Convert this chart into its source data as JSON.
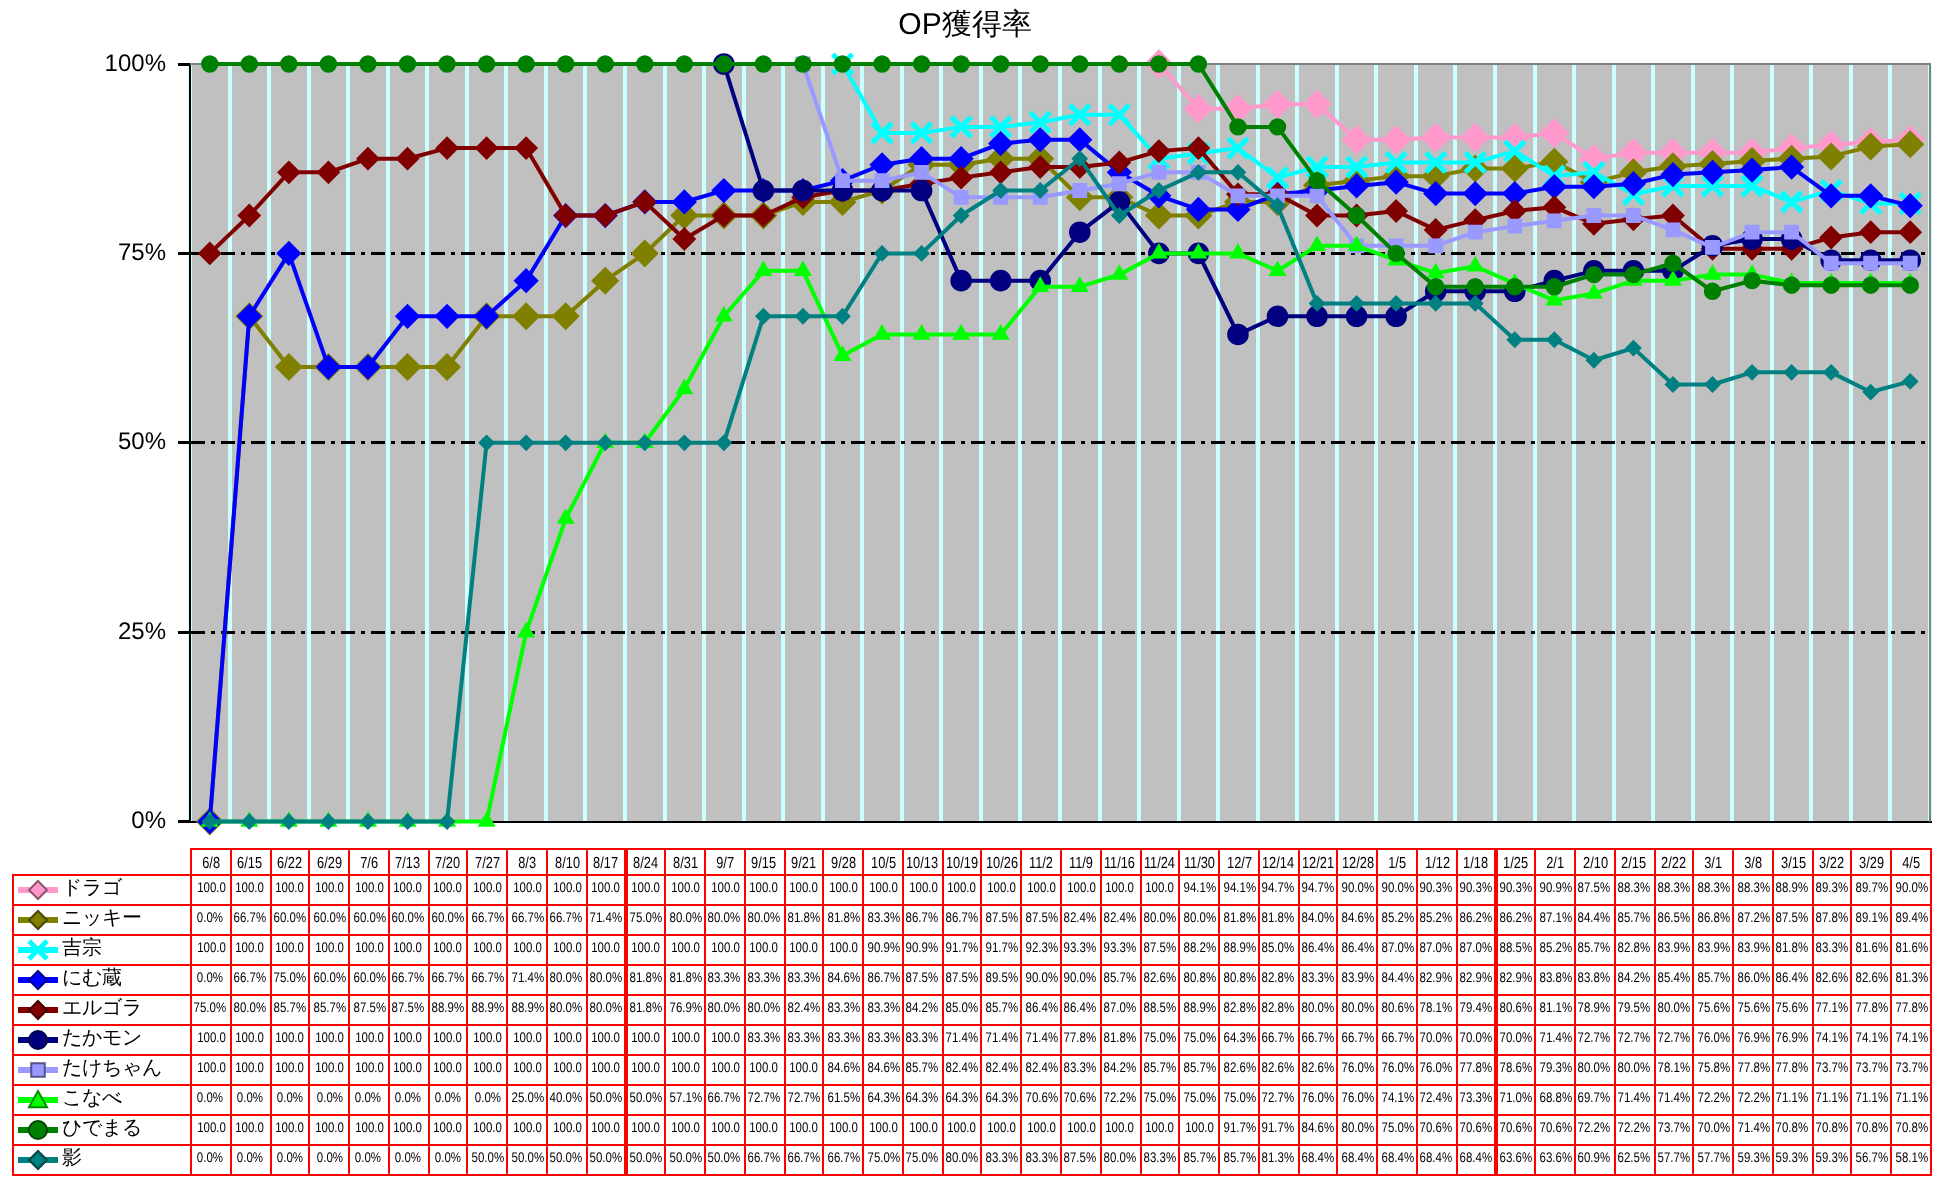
{
  "chart_data": {
    "type": "line",
    "title": "OP獲得率",
    "categories": [
      "6/8",
      "6/15",
      "6/22",
      "6/29",
      "7/6",
      "7/13",
      "7/20",
      "7/27",
      "8/3",
      "8/10",
      "8/17",
      "8/24",
      "8/31",
      "9/7",
      "9/15",
      "9/21",
      "9/28",
      "10/5",
      "10/13",
      "10/19",
      "10/26",
      "11/2",
      "11/9",
      "11/16",
      "11/24",
      "11/30",
      "12/7",
      "12/14",
      "12/21",
      "12/28",
      "1/5",
      "1/12",
      "1/18",
      "1/25",
      "2/1",
      "2/10",
      "2/15",
      "2/22",
      "3/1",
      "3/8",
      "3/15",
      "3/22",
      "3/29",
      "4/5"
    ],
    "ylim": [
      0,
      100
    ],
    "yticks": [
      {
        "value": 0,
        "label": "0%"
      },
      {
        "value": 25,
        "label": "25%"
      },
      {
        "value": 50,
        "label": "50%"
      },
      {
        "value": 75,
        "label": "75%"
      },
      {
        "value": 100,
        "label": "100%"
      }
    ],
    "grid": true,
    "legend": "bottom",
    "series": [
      {
        "name": "ドラゴ",
        "color": "#ff99cc",
        "marker": "diamond",
        "values": [
          null,
          null,
          null,
          null,
          null,
          null,
          null,
          null,
          null,
          null,
          null,
          null,
          null,
          null,
          null,
          null,
          null,
          null,
          null,
          null,
          null,
          null,
          null,
          null,
          100,
          94.1,
          94.1,
          94.7,
          94.7,
          90.0,
          90.0,
          90.3,
          90.3,
          90.3,
          90.9,
          87.5,
          88.3,
          88.3,
          88.3,
          88.3,
          88.9,
          89.3,
          89.7,
          90.0
        ],
        "value_labels": [
          "100.0",
          "100.0",
          "100.0",
          "100.0",
          "100.0",
          "100.0",
          "100.0",
          "100.0",
          "100.0",
          "100.0",
          "100.0",
          "100.0",
          "100.0",
          "100.0",
          "100.0",
          "100.0",
          "100.0",
          "100.0",
          "100.0",
          "100.0",
          "100.0",
          "100.0",
          "100.0",
          "100.0",
          "100.0",
          "94.1%",
          "94.1%",
          "94.7%",
          "94.7%",
          "90.0%",
          "90.0%",
          "90.3%",
          "90.3%",
          "90.3%",
          "90.9%",
          "87.5%",
          "88.3%",
          "88.3%",
          "88.3%",
          "88.3%",
          "88.9%",
          "89.3%",
          "89.7%",
          "90.0%"
        ]
      },
      {
        "name": "ニッキー",
        "color": "#808000",
        "marker": "diamond",
        "values": [
          0,
          66.7,
          60,
          60,
          60,
          60,
          60,
          66.7,
          66.7,
          66.7,
          71.4,
          75,
          80,
          80,
          80,
          81.8,
          81.8,
          83.3,
          86.7,
          86.7,
          87.5,
          87.5,
          82.4,
          82.4,
          80,
          80,
          81.8,
          81.8,
          84,
          84.6,
          85.2,
          85.2,
          86.2,
          86.2,
          87.1,
          84.4,
          85.7,
          86.5,
          86.8,
          87.2,
          87.5,
          87.8,
          89.1,
          89.4
        ],
        "value_labels": [
          "0.0%",
          "66.7%",
          "60.0%",
          "60.0%",
          "60.0%",
          "60.0%",
          "60.0%",
          "66.7%",
          "66.7%",
          "66.7%",
          "71.4%",
          "75.0%",
          "80.0%",
          "80.0%",
          "80.0%",
          "81.8%",
          "81.8%",
          "83.3%",
          "86.7%",
          "86.7%",
          "87.5%",
          "87.5%",
          "82.4%",
          "82.4%",
          "80.0%",
          "80.0%",
          "81.8%",
          "81.8%",
          "84.0%",
          "84.6%",
          "85.2%",
          "85.2%",
          "86.2%",
          "86.2%",
          "87.1%",
          "84.4%",
          "85.7%",
          "86.5%",
          "86.8%",
          "87.2%",
          "87.5%",
          "87.8%",
          "89.1%",
          "89.4%"
        ]
      },
      {
        "name": "吉宗",
        "color": "#00ffff",
        "marker": "cross",
        "values": [
          null,
          null,
          null,
          null,
          null,
          null,
          null,
          null,
          null,
          null,
          null,
          null,
          null,
          null,
          null,
          null,
          100,
          90.9,
          90.9,
          91.7,
          91.7,
          92.3,
          93.3,
          93.3,
          87.5,
          88.2,
          88.9,
          85.0,
          86.4,
          86.4,
          87.0,
          87.0,
          87.0,
          88.5,
          85.2,
          85.7,
          82.8,
          83.9,
          83.9,
          83.9,
          81.8,
          83.3,
          81.6,
          81.6
        ],
        "value_labels": [
          "100.0",
          "100.0",
          "100.0",
          "100.0",
          "100.0",
          "100.0",
          "100.0",
          "100.0",
          "100.0",
          "100.0",
          "100.0",
          "100.0",
          "100.0",
          "100.0",
          "100.0",
          "100.0",
          "100.0",
          "90.9%",
          "90.9%",
          "91.7%",
          "91.7%",
          "92.3%",
          "93.3%",
          "93.3%",
          "87.5%",
          "88.2%",
          "88.9%",
          "85.0%",
          "86.4%",
          "86.4%",
          "87.0%",
          "87.0%",
          "87.0%",
          "88.5%",
          "85.2%",
          "85.7%",
          "82.8%",
          "83.9%",
          "83.9%",
          "83.9%",
          "81.8%",
          "83.3%",
          "81.6%",
          "81.6%"
        ]
      },
      {
        "name": "にむ蔵",
        "color": "#0000ff",
        "marker": "diamond",
        "values": [
          0,
          66.7,
          75,
          60,
          60,
          66.7,
          66.7,
          66.7,
          71.4,
          80,
          80,
          81.8,
          81.8,
          83.3,
          83.3,
          83.3,
          84.6,
          86.7,
          87.5,
          87.5,
          89.5,
          90,
          90,
          85.7,
          82.6,
          80.8,
          80.8,
          82.8,
          83.3,
          83.9,
          84.4,
          82.9,
          82.9,
          82.9,
          83.8,
          83.8,
          84.2,
          85.4,
          85.7,
          86.0,
          86.4,
          82.6,
          82.6,
          81.3
        ],
        "value_labels": [
          "0.0%",
          "66.7%",
          "75.0%",
          "60.0%",
          "60.0%",
          "66.7%",
          "66.7%",
          "66.7%",
          "71.4%",
          "80.0%",
          "80.0%",
          "81.8%",
          "81.8%",
          "83.3%",
          "83.3%",
          "83.3%",
          "84.6%",
          "86.7%",
          "87.5%",
          "87.5%",
          "89.5%",
          "90.0%",
          "90.0%",
          "85.7%",
          "82.6%",
          "80.8%",
          "80.8%",
          "82.8%",
          "83.3%",
          "83.9%",
          "84.4%",
          "82.9%",
          "82.9%",
          "82.9%",
          "83.8%",
          "83.8%",
          "84.2%",
          "85.4%",
          "85.7%",
          "86.0%",
          "86.4%",
          "82.6%",
          "82.6%",
          "81.3%"
        ]
      },
      {
        "name": "エルゴラ",
        "color": "#800000",
        "marker": "diamond",
        "values": [
          75,
          80,
          85.7,
          85.7,
          87.5,
          87.5,
          88.9,
          88.9,
          88.9,
          80,
          80,
          81.8,
          76.9,
          80,
          80,
          82.4,
          83.3,
          83.3,
          84.2,
          85,
          85.7,
          86.4,
          86.4,
          87,
          88.5,
          88.9,
          82.8,
          82.8,
          80,
          80,
          80.6,
          78.1,
          79.4,
          80.6,
          81.1,
          78.9,
          79.5,
          80,
          75.6,
          75.6,
          75.6,
          77.1,
          77.8,
          77.8
        ],
        "value_labels": [
          "75.0%",
          "80.0%",
          "85.7%",
          "85.7%",
          "87.5%",
          "87.5%",
          "88.9%",
          "88.9%",
          "88.9%",
          "80.0%",
          "80.0%",
          "81.8%",
          "76.9%",
          "80.0%",
          "80.0%",
          "82.4%",
          "83.3%",
          "83.3%",
          "84.2%",
          "85.0%",
          "85.7%",
          "86.4%",
          "86.4%",
          "87.0%",
          "88.5%",
          "88.9%",
          "82.8%",
          "82.8%",
          "80.0%",
          "80.0%",
          "80.6%",
          "78.1%",
          "79.4%",
          "80.6%",
          "81.1%",
          "78.9%",
          "79.5%",
          "80.0%",
          "75.6%",
          "75.6%",
          "75.6%",
          "77.1%",
          "77.8%",
          "77.8%"
        ]
      },
      {
        "name": "たかモン",
        "color": "#000080",
        "marker": "circle",
        "values": [
          null,
          null,
          null,
          null,
          null,
          null,
          null,
          null,
          null,
          null,
          null,
          null,
          null,
          100,
          83.3,
          83.3,
          83.3,
          83.3,
          83.3,
          71.4,
          71.4,
          71.4,
          77.8,
          81.8,
          75,
          75,
          64.3,
          66.7,
          66.7,
          66.7,
          66.7,
          70,
          70,
          70,
          71.4,
          72.7,
          72.7,
          72.7,
          76,
          76.9,
          76.9,
          74.1,
          74.1,
          74.1
        ],
        "value_labels": [
          "100.0",
          "100.0",
          "100.0",
          "100.0",
          "100.0",
          "100.0",
          "100.0",
          "100.0",
          "100.0",
          "100.0",
          "100.0",
          "100.0",
          "100.0",
          "100.0",
          "83.3%",
          "83.3%",
          "83.3%",
          "83.3%",
          "83.3%",
          "71.4%",
          "71.4%",
          "71.4%",
          "77.8%",
          "81.8%",
          "75.0%",
          "75.0%",
          "64.3%",
          "66.7%",
          "66.7%",
          "66.7%",
          "66.7%",
          "70.0%",
          "70.0%",
          "70.0%",
          "71.4%",
          "72.7%",
          "72.7%",
          "72.7%",
          "76.0%",
          "76.9%",
          "76.9%",
          "74.1%",
          "74.1%",
          "74.1%"
        ]
      },
      {
        "name": "たけちゃん",
        "color": "#9999ff",
        "marker": "square",
        "values": [
          null,
          null,
          null,
          null,
          null,
          null,
          null,
          null,
          null,
          null,
          null,
          null,
          null,
          null,
          null,
          100,
          84.6,
          84.6,
          85.7,
          82.4,
          82.4,
          82.4,
          83.3,
          84.2,
          85.7,
          85.7,
          82.6,
          82.6,
          82.6,
          76,
          76,
          76,
          77.8,
          78.6,
          79.3,
          80,
          80,
          78.1,
          75.8,
          77.8,
          77.8,
          73.7,
          73.7,
          73.7
        ],
        "value_labels": [
          "100.0",
          "100.0",
          "100.0",
          "100.0",
          "100.0",
          "100.0",
          "100.0",
          "100.0",
          "100.0",
          "100.0",
          "100.0",
          "100.0",
          "100.0",
          "100.0",
          "100.0",
          "100.0",
          "84.6%",
          "84.6%",
          "85.7%",
          "82.4%",
          "82.4%",
          "82.4%",
          "83.3%",
          "84.2%",
          "85.7%",
          "85.7%",
          "82.6%",
          "82.6%",
          "82.6%",
          "76.0%",
          "76.0%",
          "76.0%",
          "77.8%",
          "78.6%",
          "79.3%",
          "80.0%",
          "80.0%",
          "78.1%",
          "75.8%",
          "77.8%",
          "77.8%",
          "73.7%",
          "73.7%",
          "73.7%"
        ]
      },
      {
        "name": "こなべ",
        "color": "#00ff00",
        "marker": "triangle",
        "values": [
          0,
          0,
          0,
          0,
          0,
          0,
          0,
          0,
          25,
          40,
          50,
          50,
          57.1,
          66.7,
          72.7,
          72.7,
          61.5,
          64.3,
          64.3,
          64.3,
          64.3,
          70.6,
          70.6,
          72.2,
          75,
          75,
          75,
          72.7,
          76,
          76,
          74.1,
          72.4,
          73.3,
          71,
          68.8,
          69.7,
          71.4,
          71.4,
          72.2,
          72.2,
          71.1,
          71.1,
          71.1,
          71.1
        ],
        "value_labels": [
          "0.0%",
          "0.0%",
          "0.0%",
          "0.0%",
          "0.0%",
          "0.0%",
          "0.0%",
          "0.0%",
          "25.0%",
          "40.0%",
          "50.0%",
          "50.0%",
          "57.1%",
          "66.7%",
          "72.7%",
          "72.7%",
          "61.5%",
          "64.3%",
          "64.3%",
          "64.3%",
          "64.3%",
          "70.6%",
          "70.6%",
          "72.2%",
          "75.0%",
          "75.0%",
          "75.0%",
          "72.7%",
          "76.0%",
          "76.0%",
          "74.1%",
          "72.4%",
          "73.3%",
          "71.0%",
          "68.8%",
          "69.7%",
          "71.4%",
          "71.4%",
          "72.2%",
          "72.2%",
          "71.1%",
          "71.1%",
          "71.1%",
          "71.1%"
        ]
      },
      {
        "name": "ひでまる",
        "color": "#008000",
        "marker": "circle",
        "values": [
          100,
          100,
          100,
          100,
          100,
          100,
          100,
          100,
          100,
          100,
          100,
          100,
          100,
          100,
          100,
          100,
          100,
          100,
          100,
          100,
          100,
          100,
          100,
          100,
          100,
          100,
          91.7,
          91.7,
          84.6,
          80,
          75,
          70.6,
          70.6,
          70.6,
          70.6,
          72.2,
          72.2,
          73.7,
          70,
          71.4,
          70.8,
          70.8,
          70.8,
          70.8
        ],
        "value_labels": [
          "100.0",
          "100.0",
          "100.0",
          "100.0",
          "100.0",
          "100.0",
          "100.0",
          "100.0",
          "100.0",
          "100.0",
          "100.0",
          "100.0",
          "100.0",
          "100.0",
          "100.0",
          "100.0",
          "100.0",
          "100.0",
          "100.0",
          "100.0",
          "100.0",
          "100.0",
          "100.0",
          "100.0",
          "100.0",
          "100.0",
          "91.7%",
          "91.7%",
          "84.6%",
          "80.0%",
          "75.0%",
          "70.6%",
          "70.6%",
          "70.6%",
          "70.6%",
          "72.2%",
          "72.2%",
          "73.7%",
          "70.0%",
          "71.4%",
          "70.8%",
          "70.8%",
          "70.8%",
          "70.8%"
        ]
      },
      {
        "name": "影",
        "color": "#008080",
        "marker": "diamond",
        "values": [
          0,
          0,
          0,
          0,
          0,
          0,
          0,
          50,
          50,
          50,
          50,
          50,
          50,
          50,
          66.7,
          66.7,
          66.7,
          75,
          75,
          80,
          83.3,
          83.3,
          87.5,
          80,
          83.3,
          85.7,
          85.7,
          81.3,
          68.4,
          68.4,
          68.4,
          68.4,
          68.4,
          63.6,
          63.6,
          60.9,
          62.5,
          57.7,
          57.7,
          59.3,
          59.3,
          59.3,
          56.7,
          58.1
        ],
        "value_labels": [
          "0.0%",
          "0.0%",
          "0.0%",
          "0.0%",
          "0.0%",
          "0.0%",
          "0.0%",
          "50.0%",
          "50.0%",
          "50.0%",
          "50.0%",
          "50.0%",
          "50.0%",
          "50.0%",
          "66.7%",
          "66.7%",
          "66.7%",
          "75.0%",
          "75.0%",
          "80.0%",
          "83.3%",
          "83.3%",
          "87.5%",
          "80.0%",
          "83.3%",
          "85.7%",
          "85.7%",
          "81.3%",
          "68.4%",
          "68.4%",
          "68.4%",
          "68.4%",
          "68.4%",
          "63.6%",
          "63.6%",
          "60.9%",
          "62.5%",
          "57.7%",
          "57.7%",
          "59.3%",
          "59.3%",
          "59.3%",
          "56.7%",
          "58.1%"
        ]
      }
    ]
  }
}
